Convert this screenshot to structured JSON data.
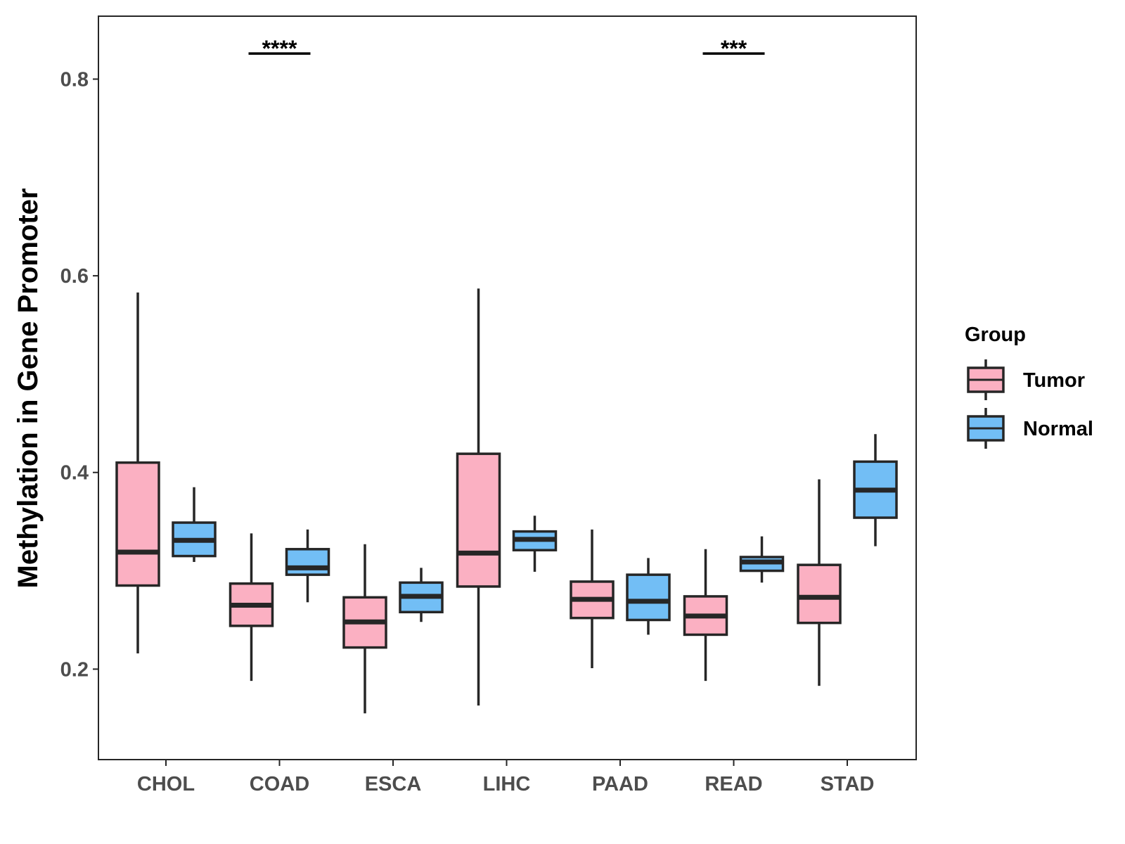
{
  "chart_data": {
    "type": "boxplot",
    "title": "",
    "xlabel": "",
    "ylabel": "Methylation in Gene Promoter",
    "ylim": [
      0.108,
      0.864
    ],
    "yticks": [
      0.2,
      0.4,
      0.6,
      0.8
    ],
    "ytick_labels": [
      "0.2",
      "0.4",
      "0.6",
      "0.8"
    ],
    "categories": [
      "CHOL",
      "COAD",
      "ESCA",
      "LIHC",
      "PAAD",
      "READ",
      "STAD"
    ],
    "grid": false,
    "legend": {
      "title": "Group",
      "position": "right"
    },
    "series": [
      {
        "name": "Tumor",
        "color": "#FBB0C2",
        "boxes": [
          {
            "min": 0.216,
            "q1": 0.285,
            "median": 0.319,
            "q3": 0.41,
            "max": 0.583
          },
          {
            "min": 0.188,
            "q1": 0.244,
            "median": 0.265,
            "q3": 0.287,
            "max": 0.338
          },
          {
            "min": 0.155,
            "q1": 0.222,
            "median": 0.248,
            "q3": 0.273,
            "max": 0.327
          },
          {
            "min": 0.163,
            "q1": 0.284,
            "median": 0.318,
            "q3": 0.419,
            "max": 0.587
          },
          {
            "min": 0.201,
            "q1": 0.252,
            "median": 0.271,
            "q3": 0.289,
            "max": 0.342
          },
          {
            "min": 0.188,
            "q1": 0.235,
            "median": 0.254,
            "q3": 0.274,
            "max": 0.322
          },
          {
            "min": 0.183,
            "q1": 0.247,
            "median": 0.273,
            "q3": 0.306,
            "max": 0.393
          }
        ]
      },
      {
        "name": "Normal",
        "color": "#72BEF5",
        "boxes": [
          {
            "min": 0.309,
            "q1": 0.315,
            "median": 0.331,
            "q3": 0.349,
            "max": 0.385
          },
          {
            "min": 0.268,
            "q1": 0.296,
            "median": 0.303,
            "q3": 0.322,
            "max": 0.342
          },
          {
            "min": 0.248,
            "q1": 0.258,
            "median": 0.274,
            "q3": 0.288,
            "max": 0.303
          },
          {
            "min": 0.299,
            "q1": 0.321,
            "median": 0.332,
            "q3": 0.34,
            "max": 0.356
          },
          {
            "min": 0.235,
            "q1": 0.25,
            "median": 0.269,
            "q3": 0.296,
            "max": 0.313
          },
          {
            "min": 0.288,
            "q1": 0.3,
            "median": 0.309,
            "q3": 0.314,
            "max": 0.335
          },
          {
            "min": 0.325,
            "q1": 0.354,
            "median": 0.382,
            "q3": 0.411,
            "max": 0.439
          }
        ]
      }
    ],
    "annotations": [
      {
        "category": "COAD",
        "label": "****",
        "y": 0.826
      },
      {
        "category": "READ",
        "label": "***",
        "y": 0.826
      }
    ]
  },
  "style": {
    "box_stroke": "#262626",
    "axis_color": "#262626"
  }
}
